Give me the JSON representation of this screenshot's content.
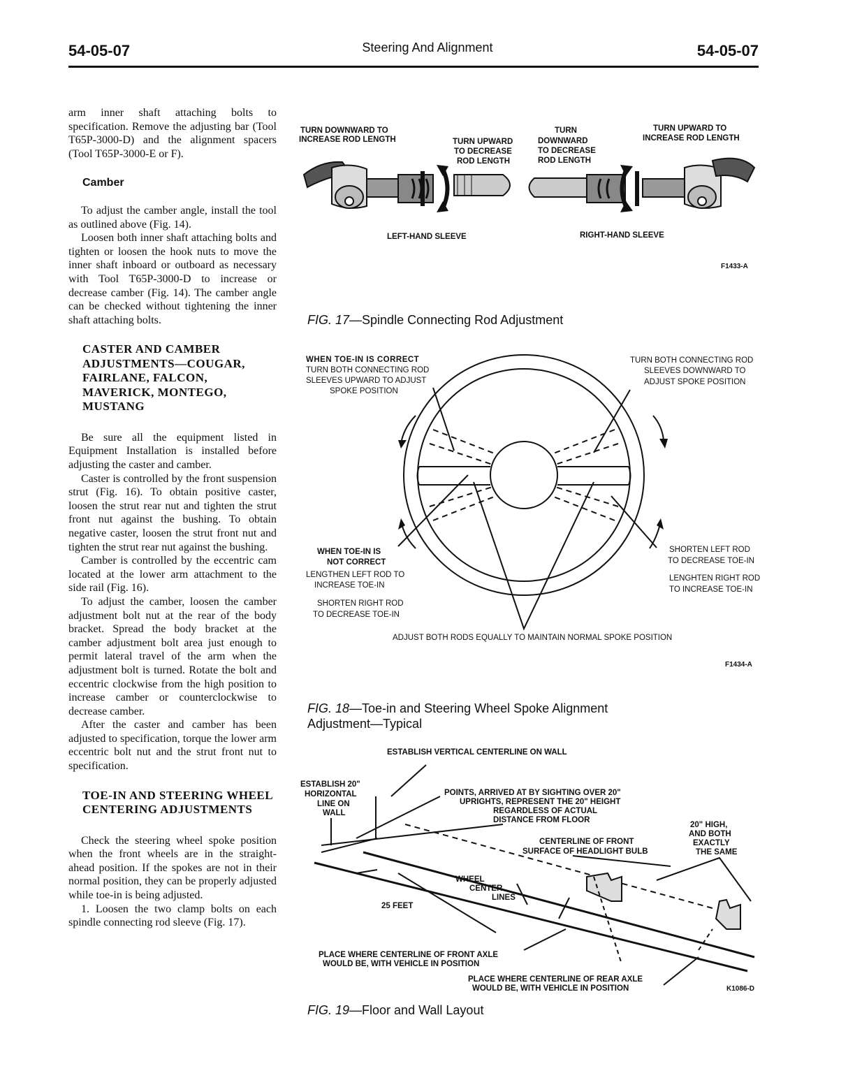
{
  "header": {
    "left": "54-05-07",
    "center": "Steering And Alignment",
    "right": "54-05-07"
  },
  "left_column": {
    "p1": "arm inner shaft attaching bolts to specification. Remove the adjusting bar (Tool T65P-3000-D) and the alignment spacers (Tool T65P-3000-E or F).",
    "h_camber": "Camber",
    "p2": "To adjust the camber angle, install the tool as outlined above (Fig. 14).",
    "p3": "Loosen both inner shaft attaching bolts and tighten or loosen the hook nuts to move the inner shaft inboard or outboard as necessary with Tool T65P-3000-D to increase or decrease camber (Fig. 14). The camber angle can be checked without tightening the inner shaft attaching bolts.",
    "h_caster": "CASTER AND CAMBER ADJUSTMENTS—COUGAR, FAIRLANE, FALCON, MAVERICK, MONTEGO, MUSTANG",
    "p4": "Be sure all the equipment listed in Equipment Installation is installed before adjusting the caster and camber.",
    "p5": "Caster is controlled by the front suspension strut (Fig. 16). To obtain positive caster, loosen the strut rear nut and tighten the strut front nut against the bushing. To obtain negative caster, loosen the strut front nut and tighten the strut rear nut against the bushing.",
    "p6": "Camber is controlled by the eccentric cam located at the lower arm attachment to the side rail (Fig. 16).",
    "p7": "To adjust the camber, loosen the camber adjustment bolt nut at the rear of the body bracket. Spread the body bracket at the camber adjustment bolt area just enough to permit lateral travel of the arm when the adjustment bolt is turned. Rotate the bolt and eccentric clockwise from the high position to increase camber or counterclockwise to decrease camber.",
    "p8": "After the caster and camber has been adjusted to specification, torque the lower arm eccentric bolt nut and the strut front nut to specification.",
    "h_toe": "TOE-IN AND STEERING WHEEL CENTERING ADJUSTMENTS",
    "p9": "Check the steering wheel spoke position when the front wheels are in the straight-ahead position. If the spokes are not in their normal position, they can be properly adjusted while toe-in is being adjusted.",
    "p10": "1. Loosen the two clamp bolts on each spindle connecting rod sleeve (Fig. 17)."
  },
  "fig17": {
    "l1a": "TURN DOWNWARD TO",
    "l1b": "INCREASE ROD LENGTH",
    "l2a": "TURN UPWARD",
    "l2b": "TO DECREASE",
    "l2c": "ROD LENGTH",
    "l3a": "TURN",
    "l3b": "DOWNWARD",
    "l3c": "TO DECREASE",
    "l3d": "ROD LENGTH",
    "l4a": "TURN UPWARD TO",
    "l4b": "INCREASE ROD LENGTH",
    "left_sleeve": "LEFT-HAND SLEEVE",
    "right_sleeve": "RIGHT-HAND SLEEVE",
    "code": "F1433-A",
    "cap_fig": "FIG. 17",
    "cap_text": "—Spindle Connecting Rod Adjustment"
  },
  "fig18": {
    "tl1": "WHEN TOE-IN IS CORRECT",
    "tl2": "TURN BOTH CONNECTING ROD",
    "tl3": "SLEEVES UPWARD TO ADJUST",
    "tl4": "SPOKE POSITION",
    "tr1": "TURN BOTH CONNECTING ROD",
    "tr2": "SLEEVES DOWNWARD TO",
    "tr3": "ADJUST SPOKE POSITION",
    "bl1": "WHEN TOE-IN IS",
    "bl2": "NOT CORRECT",
    "bl3": "LENGTHEN LEFT ROD TO",
    "bl4": "INCREASE TOE-IN",
    "bl5": "SHORTEN RIGHT ROD",
    "bl6": "TO DECREASE TOE-IN",
    "br1": "SHORTEN LEFT ROD",
    "br2": "TO DECREASE TOE-IN",
    "br3": "LENGHTEN RIGHT ROD",
    "br4": "TO INCREASE TOE-IN",
    "bottom": "ADJUST BOTH RODS EQUALLY TO MAINTAIN NORMAL SPOKE POSITION",
    "code": "F1434-A",
    "cap_fig": "FIG. 18",
    "cap_text1": "—Toe-in and Steering Wheel Spoke Alignment",
    "cap_text2": "Adjustment—Typical"
  },
  "fig19": {
    "top": "ESTABLISH VERTICAL CENTERLINE ON WALL",
    "h1": "ESTABLISH 20\"",
    "h2": "HORIZONTAL",
    "h3": "LINE ON",
    "h4": "WALL",
    "p1": "POINTS, ARRIVED AT BY SIGHTING OVER 20\"",
    "p2": "UPRIGHTS, REPRESENT THE 20\" HEIGHT",
    "p3": "REGARDLESS OF ACTUAL",
    "p4": "DISTANCE FROM FLOOR",
    "c1": "CENTERLINE OF FRONT",
    "c2": "SURFACE OF HEADLIGHT BULB",
    "r1": "20\" HIGH,",
    "r2": "AND BOTH",
    "r3": "EXACTLY",
    "r4": "THE SAME",
    "w1": "WHEEL",
    "w2": "CENTER",
    "w3": "LINES",
    "feet": "25 FEET",
    "fa1": "PLACE WHERE CENTERLINE OF FRONT AXLE",
    "fa2": "WOULD BE, WITH VEHICLE IN POSITION",
    "ra1": "PLACE WHERE CENTERLINE OF REAR AXLE",
    "ra2": "WOULD BE, WITH VEHICLE IN POSITION",
    "code": "K1086-D",
    "cap_fig": "FIG. 19",
    "cap_text": "—Floor and Wall Layout"
  }
}
